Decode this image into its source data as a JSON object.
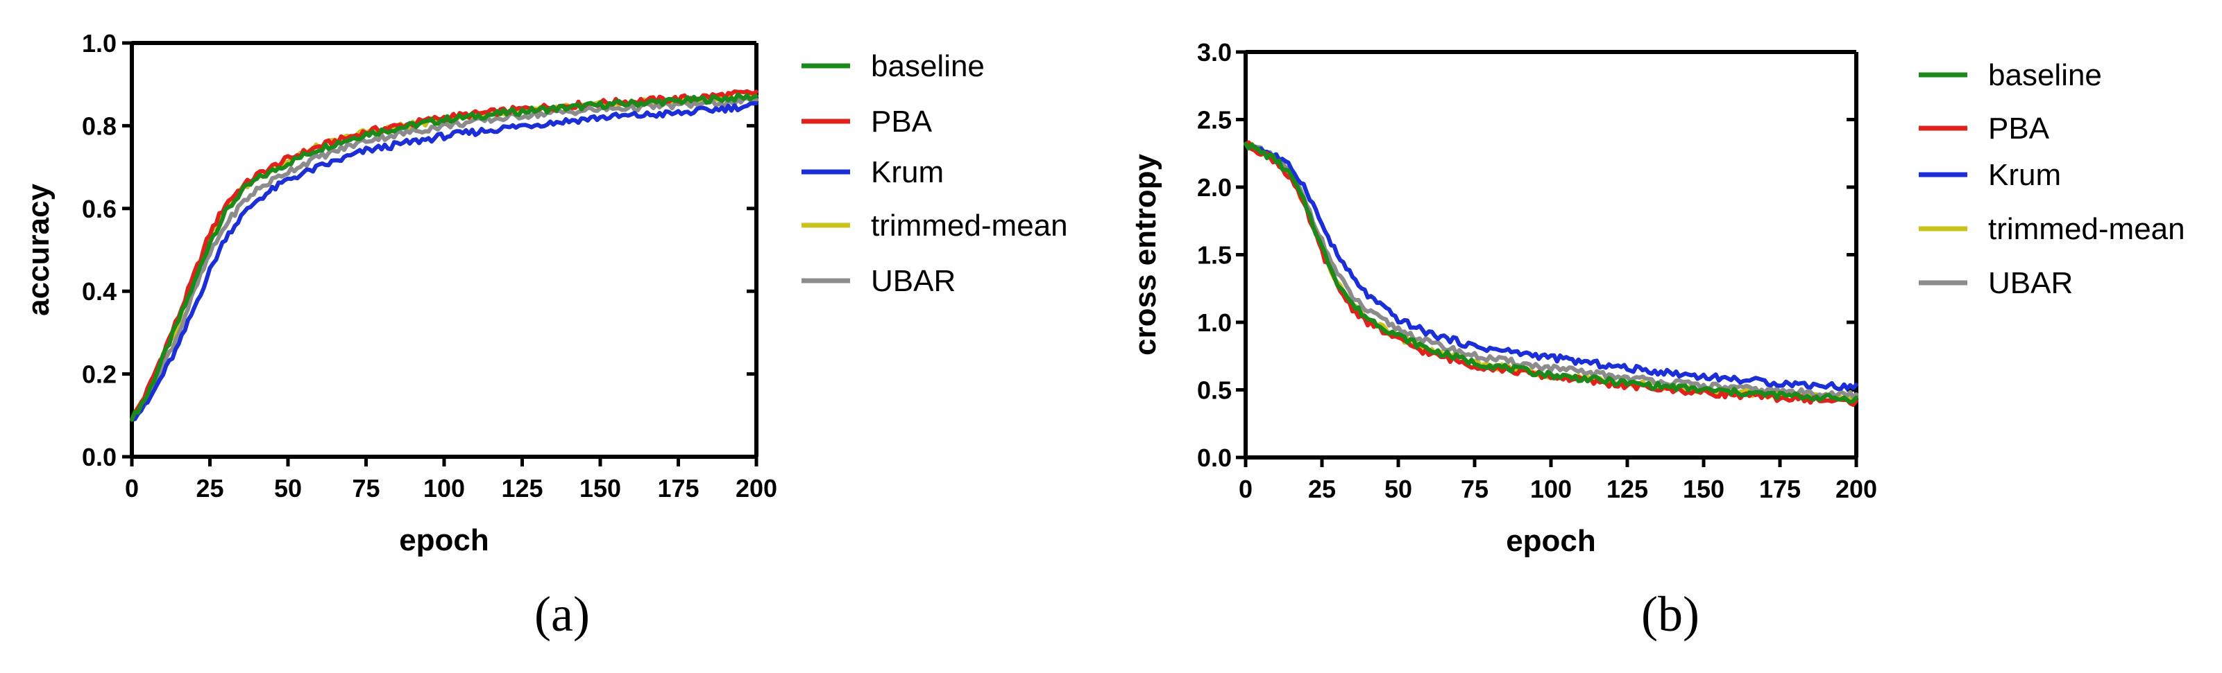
{
  "figure": {
    "panels": [
      {
        "label": "(a)"
      },
      {
        "label": "(b)"
      }
    ]
  },
  "colors": {
    "baseline": "#1a8a1a",
    "PBA": "#e0221c",
    "Krum": "#1c2fd6",
    "trimmed-mean": "#c9c21a",
    "UBAR": "#8c8c8c"
  },
  "chart_data": [
    {
      "type": "line",
      "panel": "(a)",
      "title": "",
      "xlabel": "epoch",
      "ylabel": "accuracy",
      "xlim": [
        0,
        200
      ],
      "ylim": [
        0,
        1.0
      ],
      "xticks": [
        0,
        25,
        50,
        75,
        100,
        125,
        150,
        175,
        200
      ],
      "yticks": [
        0.0,
        0.2,
        0.4,
        0.6,
        0.8,
        1.0
      ],
      "ytick_labels": [
        "0.0",
        "0.2",
        "0.4",
        "0.6",
        "0.8",
        "1.0"
      ],
      "legend": [
        "baseline",
        "PBA",
        "Krum",
        "trimmed-mean",
        "UBAR"
      ],
      "legend_position": "right",
      "x": [
        0,
        5,
        10,
        15,
        20,
        25,
        30,
        35,
        40,
        50,
        60,
        75,
        100,
        125,
        150,
        175,
        200
      ],
      "series": [
        {
          "name": "baseline",
          "values": [
            0.09,
            0.15,
            0.24,
            0.33,
            0.42,
            0.52,
            0.59,
            0.64,
            0.67,
            0.71,
            0.745,
            0.78,
            0.815,
            0.835,
            0.85,
            0.86,
            0.87
          ]
        },
        {
          "name": "PBA",
          "values": [
            0.09,
            0.16,
            0.25,
            0.34,
            0.44,
            0.54,
            0.61,
            0.65,
            0.68,
            0.72,
            0.75,
            0.785,
            0.82,
            0.84,
            0.855,
            0.865,
            0.88
          ]
        },
        {
          "name": "Krum",
          "values": [
            0.09,
            0.13,
            0.2,
            0.27,
            0.36,
            0.45,
            0.53,
            0.58,
            0.62,
            0.67,
            0.7,
            0.74,
            0.775,
            0.8,
            0.82,
            0.83,
            0.85
          ]
        },
        {
          "name": "trimmed-mean",
          "values": [
            0.09,
            0.15,
            0.24,
            0.33,
            0.43,
            0.53,
            0.6,
            0.645,
            0.675,
            0.715,
            0.75,
            0.785,
            0.815,
            0.835,
            0.85,
            0.86,
            0.87
          ]
        },
        {
          "name": "UBAR",
          "values": [
            0.09,
            0.14,
            0.22,
            0.3,
            0.4,
            0.49,
            0.56,
            0.61,
            0.645,
            0.69,
            0.725,
            0.765,
            0.8,
            0.825,
            0.84,
            0.85,
            0.86
          ]
        }
      ]
    },
    {
      "type": "line",
      "panel": "(b)",
      "title": "",
      "xlabel": "epoch",
      "ylabel": "cross entropy",
      "xlim": [
        0,
        200
      ],
      "ylim": [
        0,
        3.0
      ],
      "xticks": [
        0,
        25,
        50,
        75,
        100,
        125,
        150,
        175,
        200
      ],
      "yticks": [
        0.0,
        0.5,
        1.0,
        1.5,
        2.0,
        2.5,
        3.0
      ],
      "ytick_labels": [
        "0.0",
        "0.5",
        "1.0",
        "1.5",
        "2.0",
        "2.5",
        "3.0"
      ],
      "legend": [
        "baseline",
        "PBA",
        "Krum",
        "trimmed-mean",
        "UBAR"
      ],
      "legend_position": "right",
      "x": [
        0,
        5,
        10,
        15,
        20,
        25,
        30,
        35,
        40,
        50,
        60,
        75,
        100,
        125,
        150,
        175,
        200
      ],
      "series": [
        {
          "name": "baseline",
          "values": [
            2.32,
            2.26,
            2.2,
            2.08,
            1.85,
            1.55,
            1.3,
            1.13,
            1.03,
            0.9,
            0.8,
            0.7,
            0.61,
            0.55,
            0.5,
            0.46,
            0.43
          ]
        },
        {
          "name": "PBA",
          "values": [
            2.32,
            2.26,
            2.19,
            2.06,
            1.82,
            1.52,
            1.27,
            1.1,
            1.0,
            0.87,
            0.77,
            0.68,
            0.6,
            0.53,
            0.48,
            0.44,
            0.41
          ]
        },
        {
          "name": "Krum",
          "values": [
            2.32,
            2.28,
            2.23,
            2.14,
            1.98,
            1.72,
            1.5,
            1.33,
            1.2,
            1.02,
            0.92,
            0.82,
            0.74,
            0.66,
            0.6,
            0.55,
            0.52
          ]
        },
        {
          "name": "trimmed-mean",
          "values": [
            2.32,
            2.26,
            2.2,
            2.07,
            1.84,
            1.54,
            1.29,
            1.12,
            1.02,
            0.89,
            0.79,
            0.7,
            0.61,
            0.55,
            0.5,
            0.46,
            0.44
          ]
        },
        {
          "name": "UBAR",
          "values": [
            2.32,
            2.27,
            2.21,
            2.1,
            1.88,
            1.6,
            1.36,
            1.19,
            1.08,
            0.95,
            0.85,
            0.75,
            0.66,
            0.59,
            0.53,
            0.49,
            0.46
          ]
        }
      ]
    }
  ]
}
